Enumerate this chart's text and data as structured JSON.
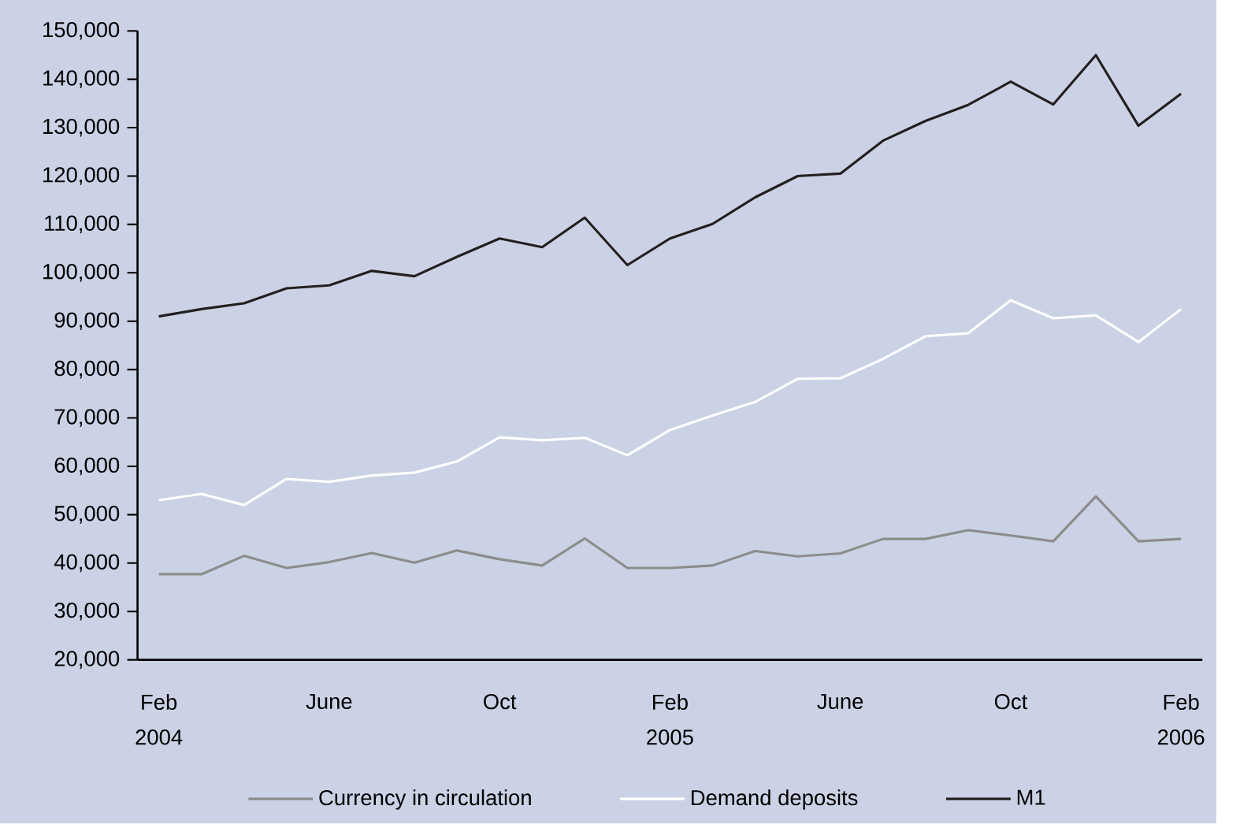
{
  "chart_data": {
    "type": "line",
    "categories": [
      "Feb 2004",
      null,
      null,
      null,
      "June",
      null,
      null,
      null,
      "Oct",
      null,
      null,
      null,
      "Feb 2005",
      null,
      null,
      null,
      "June",
      null,
      null,
      null,
      "Oct",
      null,
      null,
      null,
      "Feb 2006"
    ],
    "series": [
      {
        "name": "Currency in circulation",
        "color": "#8c8c8c",
        "values": [
          37700,
          37700,
          41500,
          39000,
          40200,
          42100,
          40100,
          42600,
          40800,
          39500,
          45100,
          39000,
          39000,
          39500,
          42500,
          41400,
          42000,
          45000,
          45000,
          46800,
          45700,
          44500,
          53800,
          44500,
          45000
        ]
      },
      {
        "name": "Demand deposits",
        "color": "#ffffff",
        "values": [
          53000,
          54300,
          52000,
          57400,
          56800,
          58100,
          58700,
          61000,
          66000,
          65400,
          65900,
          62300,
          67500,
          70500,
          73300,
          78100,
          78200,
          82200,
          86900,
          87500,
          94300,
          90600,
          91200,
          85700,
          92500
        ]
      },
      {
        "name": "M1",
        "color": "#231f20",
        "values": [
          91000,
          92500,
          93700,
          96800,
          97400,
          100400,
          99300,
          103300,
          107100,
          105300,
          111400,
          101600,
          107100,
          110100,
          115600,
          120000,
          120500,
          127300,
          131400,
          134700,
          139500,
          134800,
          145000,
          130400,
          137000
        ]
      }
    ],
    "ylim": [
      20000,
      150000
    ],
    "yticks": [
      {
        "value": 20000,
        "label": "20,000"
      },
      {
        "value": 30000,
        "label": "30,000"
      },
      {
        "value": 40000,
        "label": "40,000"
      },
      {
        "value": 50000,
        "label": "50,000"
      },
      {
        "value": 60000,
        "label": "60,000"
      },
      {
        "value": 70000,
        "label": "70,000"
      },
      {
        "value": 80000,
        "label": "80,000"
      },
      {
        "value": 90000,
        "label": "90,000"
      },
      {
        "value": 100000,
        "label": "100,000"
      },
      {
        "value": 110000,
        "label": "110,000"
      },
      {
        "value": 120000,
        "label": "120,000"
      },
      {
        "value": 130000,
        "label": "130,000"
      },
      {
        "value": 140000,
        "label": "140,000"
      },
      {
        "value": 150000,
        "label": "150,000"
      }
    ],
    "legend": "bottom",
    "grid": false,
    "marker": "none",
    "line_style": "solid"
  }
}
